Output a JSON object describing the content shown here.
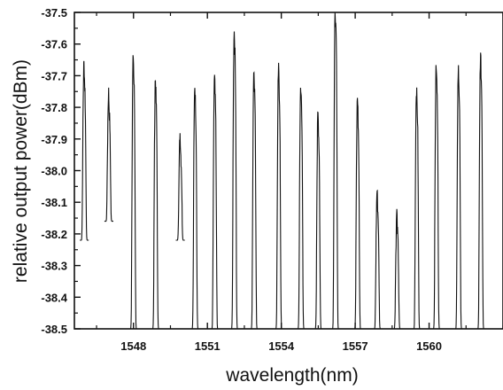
{
  "chart_data": {
    "type": "line",
    "xlabel": "wavelength(nm)",
    "ylabel": "relative output power(dBm)",
    "xlim": [
      1545.6,
      1563.0
    ],
    "ylim": [
      -38.5,
      -37.5
    ],
    "x_ticks": [
      1548,
      1551,
      1554,
      1557,
      1560
    ],
    "x_tick_labels": [
      "1548",
      "1551",
      "1554",
      "1557",
      "1560"
    ],
    "y_ticks": [
      -37.5,
      -37.6,
      -37.7,
      -37.8,
      -37.9,
      -38.0,
      -38.1,
      -38.2,
      -38.3,
      -38.4,
      -38.5
    ],
    "y_tick_labels": [
      "-37.5",
      "-37.6",
      "-37.7",
      "-37.8",
      "-37.9",
      "-38.0",
      "-38.1",
      "-38.2",
      "-38.3",
      "-38.4",
      "-38.5"
    ],
    "grid": false,
    "line_color": "#111111",
    "series": [
      {
        "peaks": [
          {
            "center": 1546.0,
            "level": -37.74,
            "low": -38.22
          },
          {
            "center": 1547.0,
            "level": -37.83,
            "low": -38.16
          },
          {
            "center": 1548.0,
            "level": -37.72,
            "low": -38.5
          },
          {
            "center": 1548.9,
            "level": -37.79,
            "low": -38.5
          },
          {
            "center": 1549.9,
            "level": -37.96,
            "low": -38.22
          },
          {
            "center": 1550.5,
            "level": -37.81,
            "low": -38.5
          },
          {
            "center": 1551.3,
            "level": -37.79,
            "low": -38.5
          },
          {
            "center": 1552.1,
            "level": -37.64,
            "low": -38.5
          },
          {
            "center": 1552.9,
            "level": -37.76,
            "low": -38.5
          },
          {
            "center": 1553.9,
            "level": -37.76,
            "low": -38.5
          },
          {
            "center": 1554.8,
            "level": -37.81,
            "low": -38.5
          },
          {
            "center": 1555.5,
            "level": -37.9,
            "low": -38.5
          },
          {
            "center": 1556.2,
            "level": -37.58,
            "low": -38.5
          },
          {
            "center": 1557.1,
            "level": -37.85,
            "low": -38.5
          },
          {
            "center": 1557.9,
            "level": -38.14,
            "low": -38.5
          },
          {
            "center": 1558.7,
            "level": -38.21,
            "low": -38.5
          },
          {
            "center": 1559.5,
            "level": -37.82,
            "low": -38.5
          },
          {
            "center": 1560.3,
            "level": -37.74,
            "low": -38.5
          },
          {
            "center": 1561.2,
            "level": -37.76,
            "low": -38.5
          },
          {
            "center": 1562.1,
            "level": -37.72,
            "low": -38.5
          }
        ]
      }
    ]
  }
}
